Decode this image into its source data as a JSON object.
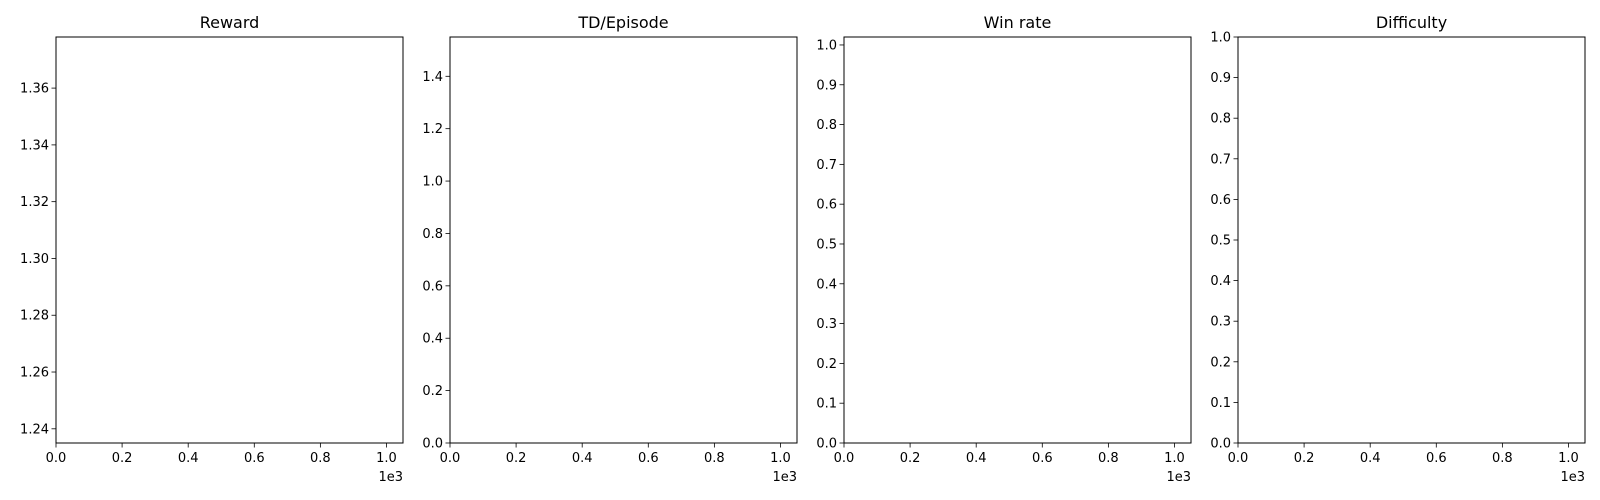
{
  "chart_data": [
    {
      "type": "line",
      "title": "Reward",
      "xlabel": "",
      "ylabel": "",
      "xlim": [
        0,
        1050
      ],
      "ylim": [
        1.235,
        1.378
      ],
      "x_ticks": [
        0,
        200,
        400,
        600,
        800,
        1000
      ],
      "x_tick_labels": [
        "0.0",
        "0.2",
        "0.4",
        "0.6",
        "0.8",
        "1.0"
      ],
      "x_offset_label": "1e3",
      "y_ticks": [
        1.24,
        1.26,
        1.28,
        1.3,
        1.32,
        1.34,
        1.36
      ],
      "y_tick_labels": [
        "1.24",
        "1.26",
        "1.28",
        "1.30",
        "1.32",
        "1.34",
        "1.36"
      ],
      "series": [],
      "grid": false
    },
    {
      "type": "line",
      "title": "TD/Episode",
      "xlabel": "",
      "ylabel": "",
      "xlim": [
        0,
        1050
      ],
      "ylim": [
        0,
        1.55
      ],
      "x_ticks": [
        0,
        200,
        400,
        600,
        800,
        1000
      ],
      "x_tick_labels": [
        "0.0",
        "0.2",
        "0.4",
        "0.6",
        "0.8",
        "1.0"
      ],
      "x_offset_label": "1e3",
      "y_ticks": [
        0,
        0.2,
        0.4,
        0.6,
        0.8,
        1.0,
        1.2,
        1.4
      ],
      "y_tick_labels": [
        "0.0",
        "0.2",
        "0.4",
        "0.6",
        "0.8",
        "1.0",
        "1.2",
        "1.4"
      ],
      "series": [],
      "grid": false
    },
    {
      "type": "line",
      "title": "Win rate",
      "xlabel": "",
      "ylabel": "",
      "xlim": [
        0,
        1050
      ],
      "ylim": [
        0,
        1.02
      ],
      "x_ticks": [
        0,
        200,
        400,
        600,
        800,
        1000
      ],
      "x_tick_labels": [
        "0.0",
        "0.2",
        "0.4",
        "0.6",
        "0.8",
        "1.0"
      ],
      "x_offset_label": "1e3",
      "y_ticks": [
        0,
        0.1,
        0.2,
        0.3,
        0.4,
        0.5,
        0.6,
        0.7,
        0.8,
        0.9,
        1.0
      ],
      "y_tick_labels": [
        "0.0",
        "0.1",
        "0.2",
        "0.3",
        "0.4",
        "0.5",
        "0.6",
        "0.7",
        "0.8",
        "0.9",
        "1.0"
      ],
      "series": [],
      "grid": false
    },
    {
      "type": "line",
      "title": "Difficulty",
      "xlabel": "",
      "ylabel": "",
      "xlim": [
        0,
        1050
      ],
      "ylim": [
        0,
        1.0
      ],
      "x_ticks": [
        0,
        200,
        400,
        600,
        800,
        1000
      ],
      "x_tick_labels": [
        "0.0",
        "0.2",
        "0.4",
        "0.6",
        "0.8",
        "1.0"
      ],
      "x_offset_label": "1e3",
      "y_ticks": [
        0,
        0.1,
        0.2,
        0.3,
        0.4,
        0.5,
        0.6,
        0.7,
        0.8,
        0.9,
        1.0
      ],
      "y_tick_labels": [
        "0.0",
        "0.1",
        "0.2",
        "0.3",
        "0.4",
        "0.5",
        "0.6",
        "0.7",
        "0.8",
        "0.9",
        "1.0"
      ],
      "series": [],
      "grid": false
    }
  ]
}
